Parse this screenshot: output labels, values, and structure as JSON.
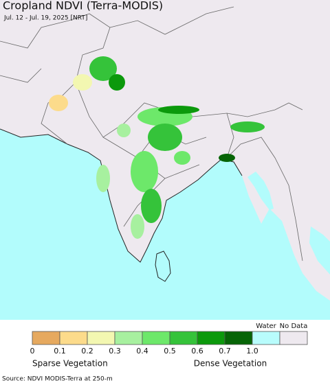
{
  "header": {
    "title": "Cropland NDVI (Terra-MODIS)",
    "subtitle": "Jul. 12 - Jul. 19, 2025 [NRT]"
  },
  "legend": {
    "colors": [
      "#e6a95f",
      "#fcdb8b",
      "#f3f7b1",
      "#a7f09f",
      "#6de86a",
      "#35c33a",
      "#0c990c",
      "#066406",
      "#b8fcfc",
      "#eee9ef"
    ],
    "ticks": [
      "0",
      "0.1",
      "0.2",
      "0.3",
      "0.4",
      "0.5",
      "0.6",
      "0.7",
      "1.0"
    ],
    "special": [
      "Water",
      "No Data"
    ],
    "low_label": "Sparse Vegetation",
    "high_label": "Dense Vegetation"
  },
  "footer": {
    "source": "Source: NDVI MODIS-Terra at 250-m"
  }
}
